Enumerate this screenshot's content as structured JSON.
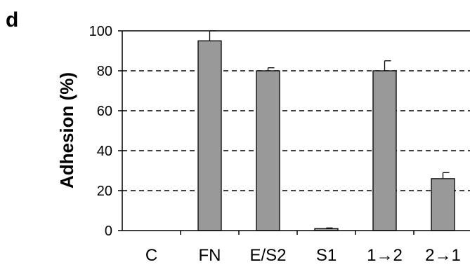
{
  "panel_label": "d",
  "chart_data": {
    "type": "bar",
    "ylabel": "Adhesion (%)",
    "xlabel": "",
    "ylim": [
      0,
      100
    ],
    "yticks": [
      0,
      20,
      40,
      60,
      80,
      100
    ],
    "grid": "dashed horizontal at 20, 40, 60, 80",
    "categories": [
      "C",
      "FN",
      "E/S2",
      "S1",
      "1→2",
      "2→1"
    ],
    "values": [
      0,
      95,
      80,
      1,
      80,
      26
    ],
    "errors": [
      0,
      5,
      1.5,
      0.3,
      5,
      3
    ],
    "bar_color": "#999999",
    "edge_color": "#000000"
  }
}
